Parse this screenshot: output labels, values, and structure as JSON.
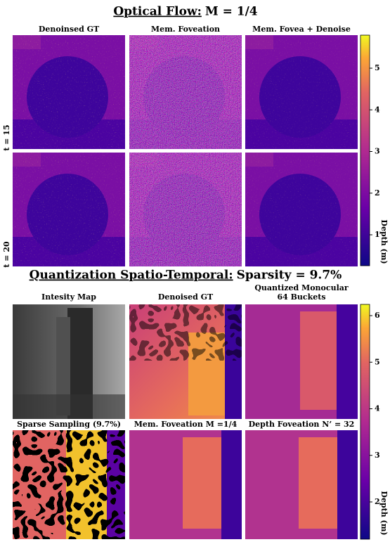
{
  "header": {
    "title_prefix": "Optical Flow:",
    "title_suffix": "M = 1/4"
  },
  "section1": {
    "columns": [
      "Denoinsed GT",
      "Mem. Foveation",
      "Mem. Fovea + Denoise"
    ],
    "rows": [
      "t = 15",
      "t = 20"
    ],
    "colorbar": {
      "label": "Depth (m)",
      "ticks": [
        5,
        4,
        3,
        2,
        1
      ]
    }
  },
  "section2": {
    "title_prefix": "Quantization Spatio-Temporal:",
    "title_suffix": "Sparsity = 9.7%",
    "row1_labels": [
      [
        "Intesity Map"
      ],
      [
        "Denoised GT"
      ],
      [
        "Quantized Monocular",
        "64 Buckets"
      ]
    ],
    "row2_labels": [
      [
        "Sparse Sampling (9.7%)"
      ],
      [
        "Mem. Foveation M =1/4"
      ],
      [
        "Depth Foveation N’ = 32"
      ]
    ],
    "colorbar": {
      "label": "Depth (m)",
      "ticks": [
        6,
        5,
        4,
        3,
        2
      ]
    }
  }
}
